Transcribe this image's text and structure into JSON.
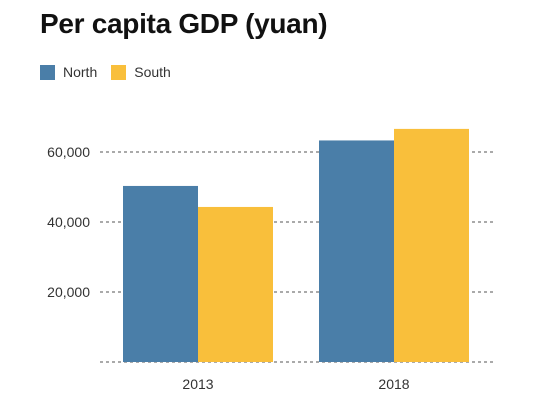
{
  "chart_data": {
    "type": "bar",
    "title": "Per capita GDP (yuan)",
    "categories": [
      "2013",
      "2018"
    ],
    "series": [
      {
        "name": "North",
        "color": "#4a7ea8",
        "values": [
          50300,
          63300
        ]
      },
      {
        "name": "South",
        "color": "#f9bf3b",
        "values": [
          44300,
          66600
        ]
      }
    ],
    "yticks": [
      20000,
      40000,
      60000
    ],
    "ytick_labels": [
      "20,000",
      "40,000",
      "60,000"
    ],
    "ylim": [
      0,
      70000
    ],
    "grid": true,
    "legend_position": "top-left",
    "xlabel": "",
    "ylabel": ""
  }
}
